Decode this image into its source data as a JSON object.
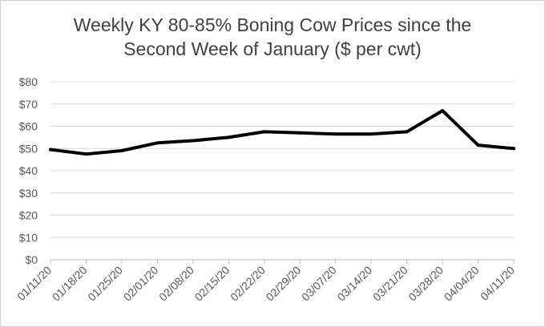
{
  "chart_data": {
    "type": "line",
    "title_line1": "Weekly KY 80-85% Boning Cow Prices since the",
    "title_line2": "Second Week of January ($ per cwt)",
    "xlabel": "",
    "ylabel": "",
    "categories": [
      "01/11/20",
      "01/18/20",
      "01/25/20",
      "02/01/20",
      "02/08/20",
      "02/15/20",
      "02/22/20",
      "02/29/20",
      "03/07/20",
      "03/14/20",
      "03/21/20",
      "03/28/20",
      "04/04/20",
      "04/11/20"
    ],
    "series": [
      {
        "values": [
          49.5,
          47.5,
          49,
          52.5,
          53.5,
          55,
          57.5,
          57,
          56.5,
          56.5,
          57.5,
          67,
          51.5,
          50
        ],
        "color": "#000000"
      }
    ],
    "ylim": [
      0,
      80
    ],
    "yticks": [
      0,
      10,
      20,
      30,
      40,
      50,
      60,
      70,
      80
    ],
    "ytick_labels": [
      "$0",
      "$10",
      "$20",
      "$30",
      "$40",
      "$50",
      "$60",
      "$70",
      "$80"
    ],
    "grid": true,
    "legend": "none"
  }
}
